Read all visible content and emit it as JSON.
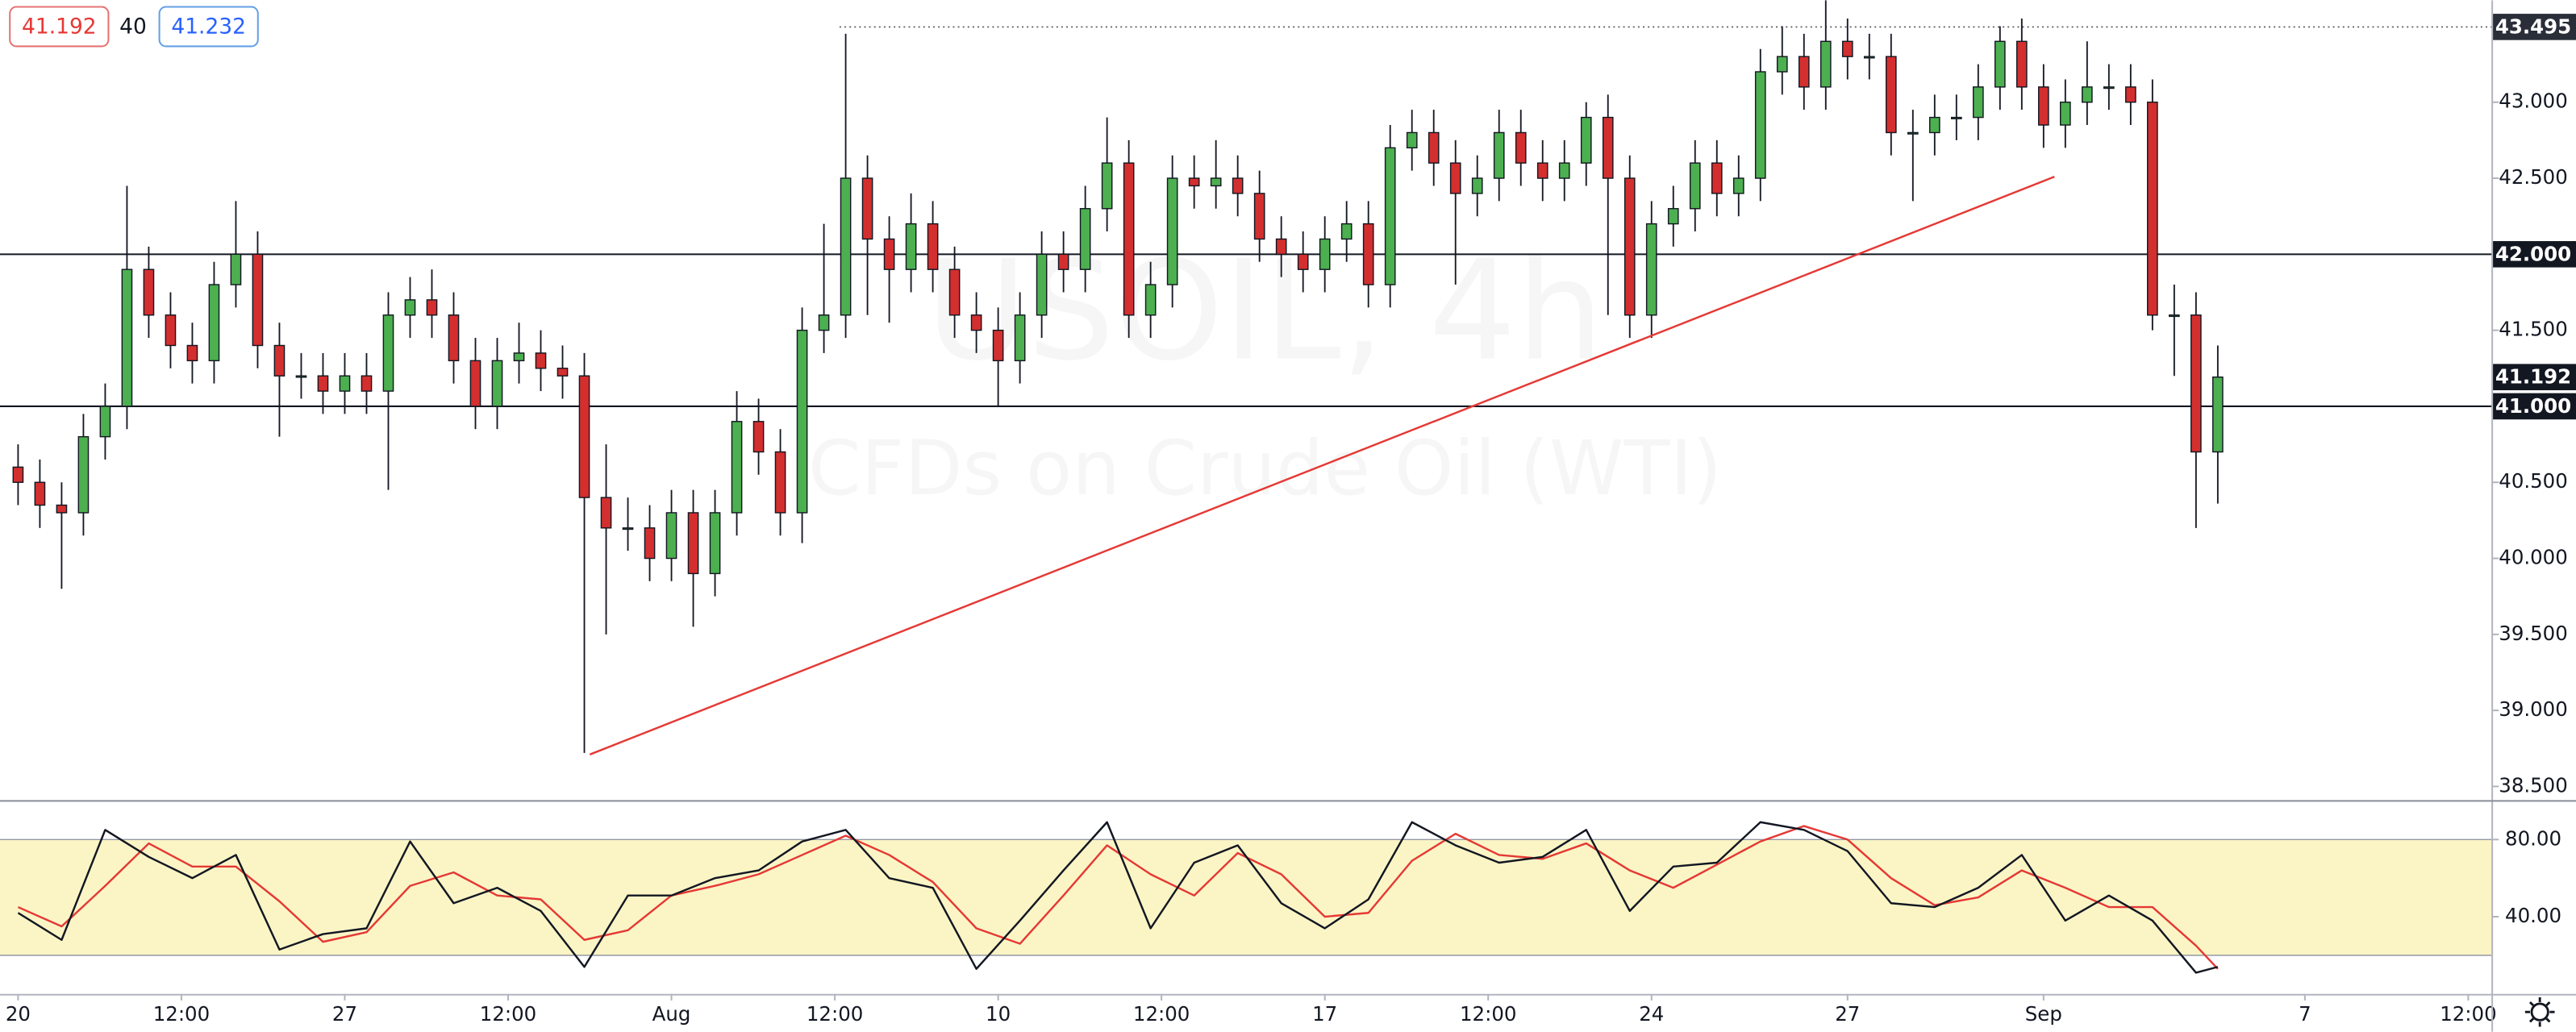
{
  "ui": {
    "bid": 41.192,
    "spread": 40,
    "ask": 41.232
  },
  "watermark": {
    "symbol": "USOIL, 4h",
    "description": "CFDs on Crude Oil (WTI)"
  },
  "chart_data": [
    {
      "type": "candlestick",
      "up_color": "#4caf50",
      "down_color": "#d32f2f",
      "grid": false,
      "xlim": [
        -1.66,
        227.2
      ],
      "ylim": [
        38.41,
        43.67
      ],
      "xticks": [
        {
          "value": 0,
          "label": "20"
        },
        {
          "value": 15,
          "label": "12:00"
        },
        {
          "value": 30,
          "label": "27"
        },
        {
          "value": 45,
          "label": "12:00"
        },
        {
          "value": 60,
          "label": "Aug"
        },
        {
          "value": 75,
          "label": "12:00"
        },
        {
          "value": 90,
          "label": "10"
        },
        {
          "value": 105,
          "label": "12:00"
        },
        {
          "value": 120,
          "label": "17"
        },
        {
          "value": 135,
          "label": "12:00"
        },
        {
          "value": 150,
          "label": "24"
        },
        {
          "value": 168,
          "label": "27"
        },
        {
          "value": 186,
          "label": "Sep"
        },
        {
          "value": 210,
          "label": "7"
        },
        {
          "value": 225,
          "label": "12:00"
        }
      ],
      "yticks": [
        {
          "value": 43,
          "label": "43.000"
        },
        {
          "value": 42.5,
          "label": "42.500"
        },
        {
          "value": 42,
          "label": "42.000"
        },
        {
          "value": 41.5,
          "label": "41.500"
        },
        {
          "value": 41,
          "label": "41.000"
        },
        {
          "value": 40.5,
          "label": "40.500"
        },
        {
          "value": 40,
          "label": "40.000"
        },
        {
          "value": 39.5,
          "label": "39.500"
        },
        {
          "value": 39,
          "label": "39.000"
        },
        {
          "value": 38.5,
          "label": "38.500"
        }
      ],
      "x": [
        0,
        2,
        4,
        6,
        8,
        10,
        12,
        14,
        16,
        18,
        20,
        22,
        24,
        26,
        28,
        30,
        32,
        34,
        36,
        38,
        40,
        42,
        44,
        46,
        48,
        50,
        52,
        54,
        56,
        58,
        60,
        62,
        64,
        66,
        68,
        70,
        72,
        74,
        76,
        78,
        80,
        82,
        84,
        86,
        88,
        90,
        92,
        94,
        96,
        98,
        100,
        102,
        104,
        106,
        108,
        110,
        112,
        114,
        116,
        118,
        120,
        122,
        124,
        126,
        128,
        130,
        132,
        134,
        136,
        138,
        140,
        142,
        144,
        146,
        148,
        150,
        152,
        154,
        156,
        158,
        160,
        162,
        164,
        166,
        168,
        170,
        172,
        174,
        176,
        178,
        180,
        182,
        184,
        186,
        188,
        190,
        192,
        194,
        196,
        198,
        200,
        202
      ],
      "open": [
        40.6,
        40.5,
        40.35,
        40.3,
        40.8,
        41.0,
        41.9,
        41.6,
        41.4,
        41.3,
        41.8,
        42.0,
        41.4,
        41.2,
        41.2,
        41.1,
        41.2,
        41.1,
        41.6,
        41.7,
        41.6,
        41.3,
        41.0,
        41.3,
        41.35,
        41.25,
        41.2,
        40.4,
        40.2,
        40.2,
        40.0,
        40.3,
        39.9,
        40.3,
        40.9,
        40.7,
        40.3,
        41.5,
        41.6,
        42.5,
        42.1,
        41.9,
        42.2,
        41.9,
        41.6,
        41.5,
        41.3,
        41.6,
        42.0,
        41.9,
        42.3,
        42.6,
        41.6,
        41.8,
        42.5,
        42.45,
        42.5,
        42.4,
        42.1,
        42.0,
        41.9,
        42.1,
        42.2,
        41.8,
        42.7,
        42.8,
        42.6,
        42.4,
        42.5,
        42.8,
        42.6,
        42.5,
        42.6,
        42.9,
        42.5,
        41.6,
        42.2,
        42.3,
        42.6,
        42.4,
        42.5,
        43.2,
        43.3,
        43.1,
        43.4,
        43.3,
        43.3,
        42.8,
        42.8,
        42.9,
        42.9,
        43.1,
        43.4,
        43.1,
        42.85,
        43.0,
        43.1,
        43.1,
        43.0,
        41.6,
        41.6,
        40.7
      ],
      "high": [
        40.75,
        40.65,
        40.5,
        40.95,
        41.15,
        42.45,
        42.05,
        41.75,
        41.55,
        41.95,
        42.35,
        42.15,
        41.55,
        41.35,
        41.35,
        41.35,
        41.35,
        41.75,
        41.85,
        41.9,
        41.75,
        41.45,
        41.45,
        41.55,
        41.5,
        41.4,
        41.35,
        40.75,
        40.4,
        40.35,
        40.45,
        40.45,
        40.45,
        41.1,
        41.05,
        40.85,
        41.65,
        42.2,
        43.45,
        42.65,
        42.25,
        42.4,
        42.35,
        42.05,
        41.75,
        41.65,
        41.75,
        42.15,
        42.15,
        42.45,
        42.9,
        42.75,
        41.95,
        42.65,
        42.65,
        42.75,
        42.65,
        42.55,
        42.25,
        42.15,
        42.25,
        42.35,
        42.35,
        42.85,
        42.95,
        42.95,
        42.75,
        42.65,
        42.95,
        42.95,
        42.75,
        42.75,
        43.0,
        43.05,
        42.65,
        42.35,
        42.45,
        42.75,
        42.75,
        42.65,
        43.35,
        43.5,
        43.45,
        43.67,
        43.55,
        43.45,
        43.45,
        42.95,
        43.05,
        43.05,
        43.25,
        43.5,
        43.55,
        43.25,
        43.15,
        43.4,
        43.25,
        43.25,
        43.15,
        41.8,
        41.75,
        41.4
      ],
      "low": [
        40.35,
        40.2,
        39.8,
        40.15,
        40.65,
        40.85,
        41.45,
        41.25,
        41.15,
        41.15,
        41.65,
        41.25,
        40.8,
        41.05,
        40.95,
        40.95,
        40.95,
        40.45,
        41.45,
        41.45,
        41.15,
        40.85,
        40.85,
        41.15,
        41.1,
        41.05,
        38.72,
        39.5,
        40.05,
        39.85,
        39.85,
        39.55,
        39.75,
        40.15,
        40.55,
        40.15,
        40.1,
        41.35,
        41.45,
        41.6,
        41.55,
        41.75,
        41.75,
        41.45,
        41.35,
        41.0,
        41.15,
        41.45,
        41.75,
        41.75,
        42.15,
        41.45,
        41.45,
        41.65,
        42.3,
        42.3,
        42.25,
        41.95,
        41.85,
        41.75,
        41.75,
        41.95,
        41.65,
        41.65,
        42.55,
        42.45,
        41.8,
        42.25,
        42.35,
        42.45,
        42.35,
        42.35,
        42.45,
        41.6,
        41.45,
        41.45,
        42.05,
        42.15,
        42.25,
        42.25,
        42.35,
        43.05,
        42.95,
        42.95,
        43.15,
        43.15,
        42.65,
        42.35,
        42.65,
        42.75,
        42.75,
        42.95,
        42.95,
        42.7,
        42.7,
        42.85,
        42.95,
        42.85,
        41.5,
        41.2,
        40.2,
        40.36
      ],
      "close": [
        40.5,
        40.35,
        40.3,
        40.8,
        41.0,
        41.9,
        41.6,
        41.4,
        41.3,
        41.8,
        42.0,
        41.4,
        41.2,
        41.2,
        41.1,
        41.2,
        41.1,
        41.6,
        41.7,
        41.6,
        41.3,
        41.0,
        41.3,
        41.35,
        41.25,
        41.2,
        40.4,
        40.2,
        40.2,
        40.0,
        40.3,
        39.9,
        40.3,
        40.9,
        40.7,
        40.3,
        41.5,
        41.6,
        42.5,
        42.1,
        41.9,
        42.2,
        41.9,
        41.6,
        41.5,
        41.3,
        41.6,
        42.0,
        41.9,
        42.3,
        42.6,
        41.6,
        41.8,
        42.5,
        42.45,
        42.5,
        42.4,
        42.1,
        42.0,
        41.9,
        42.1,
        42.2,
        41.8,
        42.7,
        42.8,
        42.6,
        42.4,
        42.5,
        42.8,
        42.6,
        42.5,
        42.6,
        42.9,
        42.5,
        41.6,
        42.2,
        42.3,
        42.6,
        42.4,
        42.5,
        43.2,
        43.3,
        43.1,
        43.4,
        43.3,
        43.3,
        42.8,
        42.8,
        42.9,
        42.9,
        43.1,
        43.4,
        43.1,
        42.85,
        43.0,
        43.1,
        43.1,
        43.0,
        41.6,
        41.6,
        40.7,
        41.192
      ],
      "levels": [
        {
          "value": 42,
          "label": "42.000"
        },
        {
          "value": 41,
          "label": "41.000"
        }
      ],
      "high_level": 43.495,
      "trendline": {
        "x": [
          52.5,
          187
        ],
        "y": [
          38.71,
          42.51
        ],
        "color": "#e53935"
      }
    },
    {
      "type": "line",
      "grid": false,
      "xlim": [
        -1.66,
        227.2
      ],
      "ylim": [
        0,
        100
      ],
      "yticks": [
        {
          "value": 80,
          "label": "80.00"
        },
        {
          "value": 40,
          "label": "40.00"
        }
      ],
      "band": [
        20,
        80
      ],
      "band_color": "#fbf5c6",
      "x": [
        0,
        4,
        8,
        12,
        16,
        20,
        24,
        28,
        32,
        36,
        40,
        44,
        48,
        52,
        56,
        60,
        64,
        68,
        72,
        76,
        80,
        84,
        88,
        92,
        96,
        100,
        104,
        108,
        112,
        116,
        120,
        124,
        128,
        132,
        136,
        140,
        144,
        148,
        152,
        156,
        160,
        164,
        168,
        172,
        176,
        180,
        184,
        188,
        192,
        196,
        200,
        202
      ],
      "series": [
        {
          "color": "#131722",
          "values": [
            42,
            28,
            85,
            71,
            60,
            72,
            23,
            31,
            34,
            79,
            47,
            55,
            43,
            14,
            51,
            51,
            60,
            64,
            79,
            85,
            60,
            55,
            13,
            38,
            64,
            89,
            34,
            68,
            77,
            47,
            34,
            49,
            89,
            77,
            68,
            71,
            85,
            43,
            66,
            68,
            89,
            85,
            74,
            47,
            45,
            55,
            72,
            38,
            51,
            38,
            11,
            14
          ]
        },
        {
          "color": "#e53935",
          "values": [
            45,
            35,
            56,
            78,
            66,
            66,
            48,
            27,
            32,
            56,
            63,
            51,
            49,
            28,
            33,
            51,
            56,
            62,
            72,
            82,
            72,
            58,
            34,
            26,
            51,
            77,
            62,
            51,
            73,
            62,
            40,
            42,
            69,
            83,
            72,
            70,
            78,
            64,
            55,
            67,
            79,
            87,
            80,
            60,
            46,
            50,
            64,
            55,
            45,
            45,
            25,
            13
          ]
        }
      ]
    }
  ]
}
